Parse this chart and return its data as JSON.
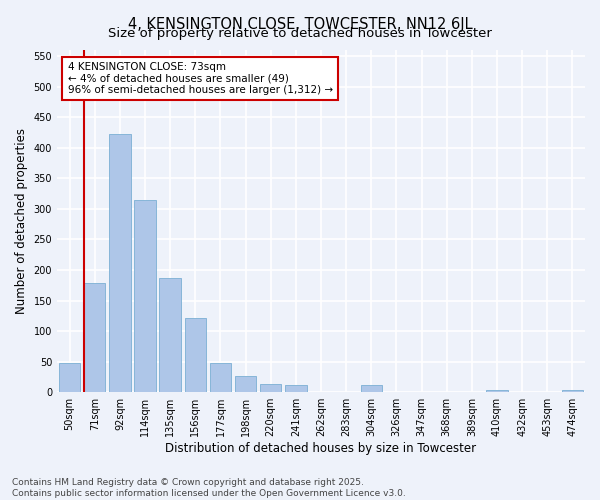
{
  "title": "4, KENSINGTON CLOSE, TOWCESTER, NN12 6JL",
  "subtitle": "Size of property relative to detached houses in Towcester",
  "xlabel": "Distribution of detached houses by size in Towcester",
  "ylabel": "Number of detached properties",
  "categories": [
    "50sqm",
    "71sqm",
    "92sqm",
    "114sqm",
    "135sqm",
    "156sqm",
    "177sqm",
    "198sqm",
    "220sqm",
    "241sqm",
    "262sqm",
    "283sqm",
    "304sqm",
    "326sqm",
    "347sqm",
    "368sqm",
    "389sqm",
    "410sqm",
    "432sqm",
    "453sqm",
    "474sqm"
  ],
  "values": [
    47,
    178,
    422,
    315,
    187,
    122,
    47,
    27,
    13,
    11,
    0,
    0,
    11,
    0,
    0,
    0,
    0,
    4,
    0,
    0,
    4
  ],
  "bar_color": "#aec6e8",
  "bar_edge_color": "#7bafd4",
  "vline_color": "#cc0000",
  "annotation_text": "4 KENSINGTON CLOSE: 73sqm\n← 4% of detached houses are smaller (49)\n96% of semi-detached houses are larger (1,312) →",
  "annotation_box_facecolor": "#ffffff",
  "annotation_box_edgecolor": "#cc0000",
  "ylim": [
    0,
    560
  ],
  "yticks": [
    0,
    50,
    100,
    150,
    200,
    250,
    300,
    350,
    400,
    450,
    500,
    550
  ],
  "footer_text": "Contains HM Land Registry data © Crown copyright and database right 2025.\nContains public sector information licensed under the Open Government Licence v3.0.",
  "bg_color": "#eef2fa",
  "grid_color": "#ffffff",
  "title_fontsize": 10.5,
  "subtitle_fontsize": 9.5,
  "axis_label_fontsize": 8.5,
  "tick_fontsize": 7,
  "annotation_fontsize": 7.5,
  "footer_fontsize": 6.5
}
